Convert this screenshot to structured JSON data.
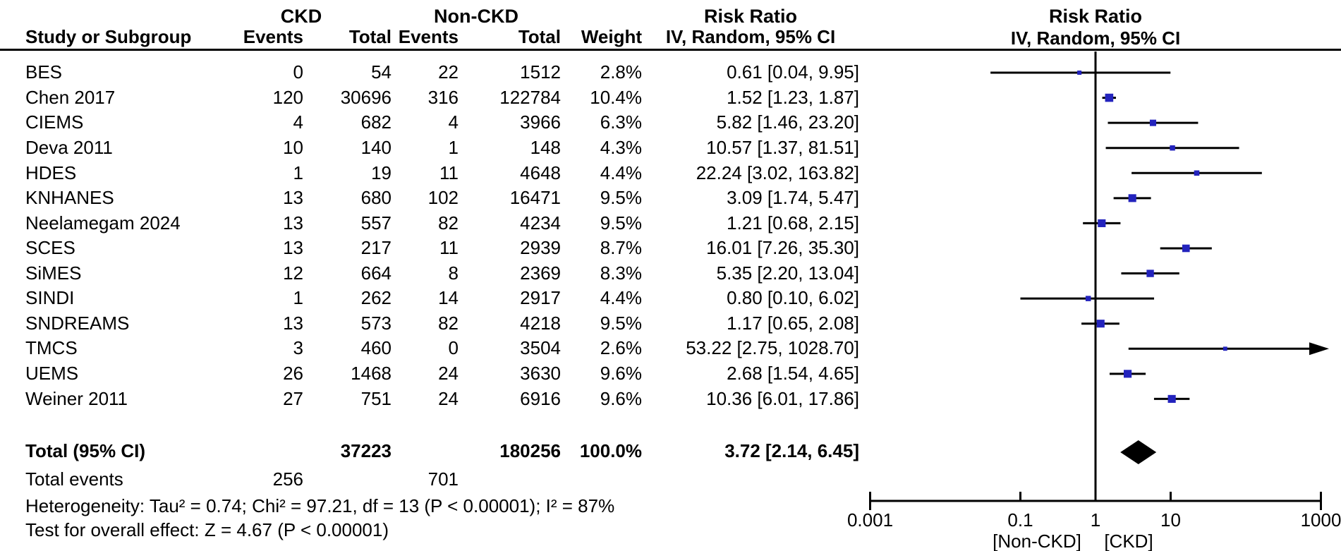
{
  "header": {
    "group1": "CKD",
    "group2": "Non-CKD",
    "col_study": "Study or Subgroup",
    "col_events": "Events",
    "col_total": "Total",
    "col_weight": "Weight",
    "effect_label": "Risk Ratio",
    "method_label": "IV, Random, 95% CI"
  },
  "chart_data": {
    "type": "forest",
    "effect_measure": "Risk Ratio",
    "model": "IV, Random, 95% CI",
    "marker_color": "#2323bd",
    "line_color": "#000000",
    "x_axis": {
      "scale": "log",
      "ticks": [
        0.001,
        0.1,
        1,
        10,
        1000
      ],
      "labels": [
        "0.001",
        "0.1",
        "1",
        "10",
        "1000"
      ],
      "left_label": "[Non-CKD]",
      "right_label": "[CKD]"
    },
    "studies": [
      {
        "name": "BES",
        "e1": 0,
        "t1": 54,
        "e2": 22,
        "t2": 1512,
        "weight": "2.8%",
        "rr": 0.61,
        "lo": 0.04,
        "hi": 9.95,
        "ci_text": "0.61 [0.04, 9.95]"
      },
      {
        "name": "Chen 2017",
        "e1": 120,
        "t1": 30696,
        "e2": 316,
        "t2": 122784,
        "weight": "10.4%",
        "rr": 1.52,
        "lo": 1.23,
        "hi": 1.87,
        "ci_text": "1.52 [1.23, 1.87]"
      },
      {
        "name": "CIEMS",
        "e1": 4,
        "t1": 682,
        "e2": 4,
        "t2": 3966,
        "weight": "6.3%",
        "rr": 5.82,
        "lo": 1.46,
        "hi": 23.2,
        "ci_text": "5.82 [1.46, 23.20]"
      },
      {
        "name": "Deva 2011",
        "e1": 10,
        "t1": 140,
        "e2": 1,
        "t2": 148,
        "weight": "4.3%",
        "rr": 10.57,
        "lo": 1.37,
        "hi": 81.51,
        "ci_text": "10.57 [1.37, 81.51]"
      },
      {
        "name": "HDES",
        "e1": 1,
        "t1": 19,
        "e2": 11,
        "t2": 4648,
        "weight": "4.4%",
        "rr": 22.24,
        "lo": 3.02,
        "hi": 163.82,
        "ci_text": "22.24 [3.02, 163.82]"
      },
      {
        "name": "KNHANES",
        "e1": 13,
        "t1": 680,
        "e2": 102,
        "t2": 16471,
        "weight": "9.5%",
        "rr": 3.09,
        "lo": 1.74,
        "hi": 5.47,
        "ci_text": "3.09 [1.74, 5.47]"
      },
      {
        "name": "Neelamegam 2024",
        "e1": 13,
        "t1": 557,
        "e2": 82,
        "t2": 4234,
        "weight": "9.5%",
        "rr": 1.21,
        "lo": 0.68,
        "hi": 2.15,
        "ci_text": "1.21 [0.68, 2.15]"
      },
      {
        "name": "SCES",
        "e1": 13,
        "t1": 217,
        "e2": 11,
        "t2": 2939,
        "weight": "8.7%",
        "rr": 16.01,
        "lo": 7.26,
        "hi": 35.3,
        "ci_text": "16.01 [7.26, 35.30]"
      },
      {
        "name": "SiMES",
        "e1": 12,
        "t1": 664,
        "e2": 8,
        "t2": 2369,
        "weight": "8.3%",
        "rr": 5.35,
        "lo": 2.2,
        "hi": 13.04,
        "ci_text": "5.35 [2.20, 13.04]"
      },
      {
        "name": "SINDI",
        "e1": 1,
        "t1": 262,
        "e2": 14,
        "t2": 2917,
        "weight": "4.4%",
        "rr": 0.8,
        "lo": 0.1,
        "hi": 6.02,
        "ci_text": "0.80 [0.10, 6.02]"
      },
      {
        "name": "SNDREAMS",
        "e1": 13,
        "t1": 573,
        "e2": 82,
        "t2": 4218,
        "weight": "9.5%",
        "rr": 1.17,
        "lo": 0.65,
        "hi": 2.08,
        "ci_text": "1.17 [0.65, 2.08]"
      },
      {
        "name": "TMCS",
        "e1": 3,
        "t1": 460,
        "e2": 0,
        "t2": 3504,
        "weight": "2.6%",
        "rr": 53.22,
        "lo": 2.75,
        "hi": 1028.7,
        "ci_text": "53.22 [2.75, 1028.70]"
      },
      {
        "name": "UEMS",
        "e1": 26,
        "t1": 1468,
        "e2": 24,
        "t2": 3630,
        "weight": "9.6%",
        "rr": 2.68,
        "lo": 1.54,
        "hi": 4.65,
        "ci_text": "2.68 [1.54, 4.65]"
      },
      {
        "name": "Weiner 2011",
        "e1": 27,
        "t1": 751,
        "e2": 24,
        "t2": 6916,
        "weight": "9.6%",
        "rr": 10.36,
        "lo": 6.01,
        "hi": 17.86,
        "ci_text": "10.36 [6.01, 17.86]"
      }
    ],
    "total": {
      "label": "Total (95% CI)",
      "total1": 37223,
      "total2": 180256,
      "weight": "100.0%",
      "rr": 3.72,
      "lo": 2.14,
      "hi": 6.45,
      "ci_text": "3.72 [2.14, 6.45]"
    },
    "total_events": {
      "label": "Total events",
      "e1": 256,
      "e2": 701
    },
    "heterogeneity": "Heterogeneity: Tau² = 0.74; Chi² = 97.21, df = 13 (P < 0.00001); I² = 87%",
    "overall_effect": "Test for overall effect: Z = 4.67 (P < 0.00001)"
  }
}
